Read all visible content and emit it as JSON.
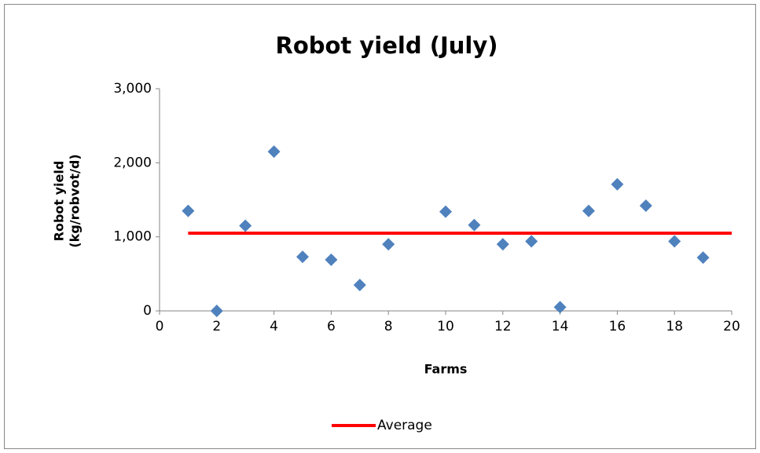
{
  "chart_data": {
    "type": "scatter",
    "title": "Robot yield (July)",
    "xlabel": "Farms",
    "ylabel": [
      "Robot yield",
      "(kg/robvot/d)"
    ],
    "xlim": [
      0,
      20
    ],
    "xticks": [
      0,
      2,
      4,
      6,
      8,
      10,
      12,
      14,
      16,
      18,
      20
    ],
    "ylim": [
      0,
      3000
    ],
    "yticks": [
      0,
      {
        "value": 1000,
        "label": "1,000"
      },
      {
        "value": 2000,
        "label": "2,000"
      },
      {
        "value": 3000,
        "label": "3,000"
      }
    ],
    "grid": false,
    "legend": "bottom",
    "series": [
      {
        "type": "scatter",
        "marker": "diamond",
        "color": "#4f81bd",
        "x": [
          1,
          2,
          3,
          4,
          5,
          6,
          7,
          8,
          10,
          11,
          12,
          13,
          14,
          15,
          16,
          17,
          18,
          19
        ],
        "values": [
          1350,
          0,
          1150,
          2150,
          730,
          690,
          350,
          900,
          1340,
          1160,
          900,
          940,
          50,
          1350,
          1710,
          1420,
          940,
          720
        ]
      },
      {
        "type": "line",
        "name": "Average",
        "color": "#ff0000",
        "x": [
          1,
          20
        ],
        "values": [
          1050,
          1050
        ]
      }
    ]
  }
}
